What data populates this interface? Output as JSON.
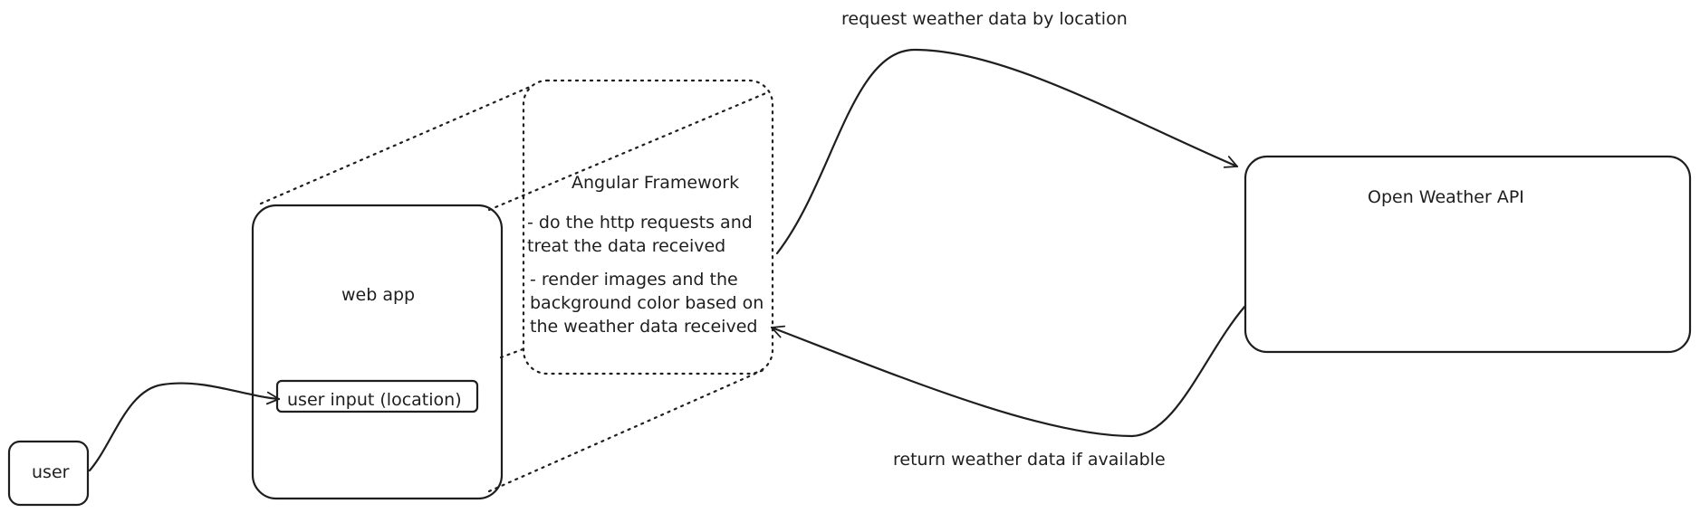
{
  "nodes": {
    "user": {
      "label": "user"
    },
    "web_app": {
      "label": "web app"
    },
    "user_input": {
      "label": "user input (location)"
    },
    "angular": {
      "title": "Angular Framework",
      "item1": "- do the http requests and\ntreat the data received",
      "item2": "- render images and the\nbackground color based on\nthe weather data received"
    },
    "api": {
      "label": "Open Weather API"
    }
  },
  "edges": {
    "request": {
      "label": "request weather data by location"
    },
    "response": {
      "label": "return weather data if available"
    }
  },
  "colors": {
    "stroke": "#1e1e1e",
    "background": "#ffffff"
  }
}
